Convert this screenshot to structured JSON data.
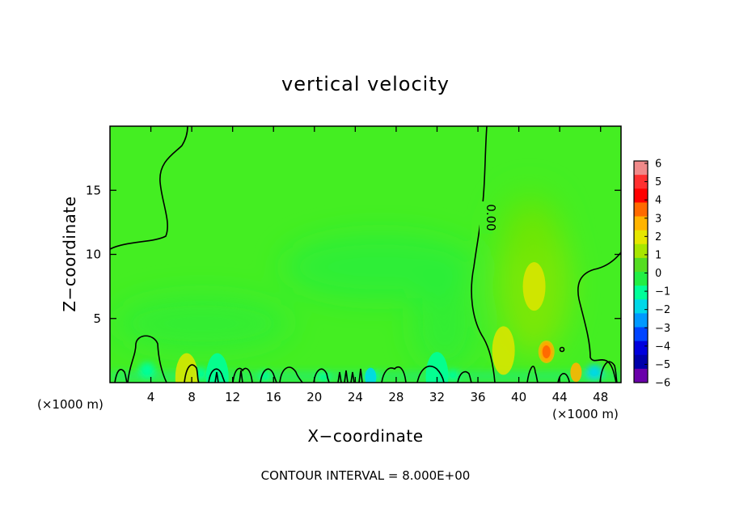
{
  "chart_data": {
    "type": "heatmap",
    "title": "vertical velocity",
    "xlabel": "X−coordinate",
    "ylabel": "Z−coordinate",
    "x_unit_left": "(×1000 m)",
    "x_unit_right": "(×1000 m)",
    "xlim": [
      0,
      50
    ],
    "ylim": [
      0,
      20
    ],
    "x_ticks": [
      4,
      8,
      12,
      16,
      20,
      24,
      28,
      32,
      36,
      40,
      44,
      48
    ],
    "y_ticks": [
      5,
      10,
      15
    ],
    "contour_label": "0.00",
    "footer": "CONTOUR INTERVAL = 8.000E+00",
    "colorbar": {
      "levels": [
        "6",
        "5",
        "4",
        "3",
        "2",
        "1",
        "0",
        "−1",
        "−2",
        "−3",
        "−4",
        "−5",
        "−6"
      ],
      "colors": [
        "#f08a8a",
        "#ff3030",
        "#ff0000",
        "#ff6a00",
        "#ffb400",
        "#e6e600",
        "#a8e600",
        "#55dd22",
        "#22ee44",
        "#00ff99",
        "#00d8e8",
        "#0099ff",
        "#0044ff",
        "#0000dd",
        "#0000aa",
        "#6a00aa"
      ]
    },
    "features": [
      {
        "x": 42.7,
        "z": 2.4,
        "w": 3
      },
      {
        "x": 41.5,
        "z": 7.5,
        "w": 1
      },
      {
        "x": 45.6,
        "z": 0.8,
        "w": 2.5
      },
      {
        "x": 38.5,
        "z": 2.5,
        "w": 1
      },
      {
        "x": 7.5,
        "z": 0.4,
        "w": 1
      },
      {
        "x": 25.5,
        "z": 0.4,
        "w": -2
      },
      {
        "x": 10.5,
        "z": 0.4,
        "w": -1.5
      },
      {
        "x": 32,
        "z": 0.5,
        "w": -1
      }
    ]
  }
}
